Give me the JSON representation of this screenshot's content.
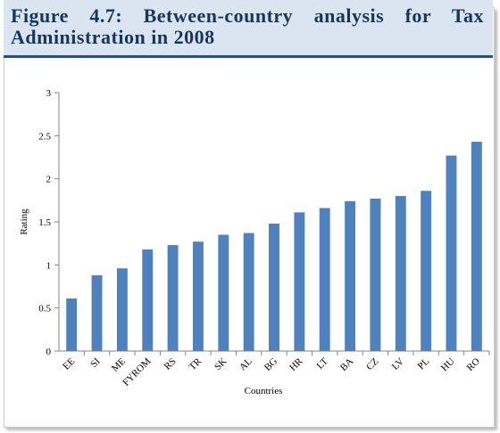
{
  "header": {
    "title": "Figure 4.7: Between-country analysis for Tax Administration in 2008"
  },
  "colors": {
    "header_bg": "#dbe5f1",
    "header_text": "#17365d",
    "header_rule": "#2b4d86",
    "bar": "#4f81bd"
  },
  "chart_data": {
    "type": "bar",
    "title": "",
    "xlabel": "Countries",
    "ylabel": "Rating",
    "ylim": [
      0,
      3
    ],
    "yticks": [
      "0",
      "0.5",
      "1",
      "1.5",
      "2",
      "2.5",
      "3"
    ],
    "grid": false,
    "legend": "none",
    "categories": [
      "EE",
      "SI",
      "ME",
      "FYROM",
      "RS",
      "TR",
      "SK",
      "AL",
      "BG",
      "HR",
      "LT",
      "BA",
      "CZ",
      "LV",
      "PL",
      "HU",
      "RO"
    ],
    "values": [
      0.61,
      0.88,
      0.96,
      1.18,
      1.23,
      1.27,
      1.35,
      1.37,
      1.48,
      1.61,
      1.66,
      1.74,
      1.77,
      1.8,
      1.86,
      2.27,
      2.43
    ]
  }
}
